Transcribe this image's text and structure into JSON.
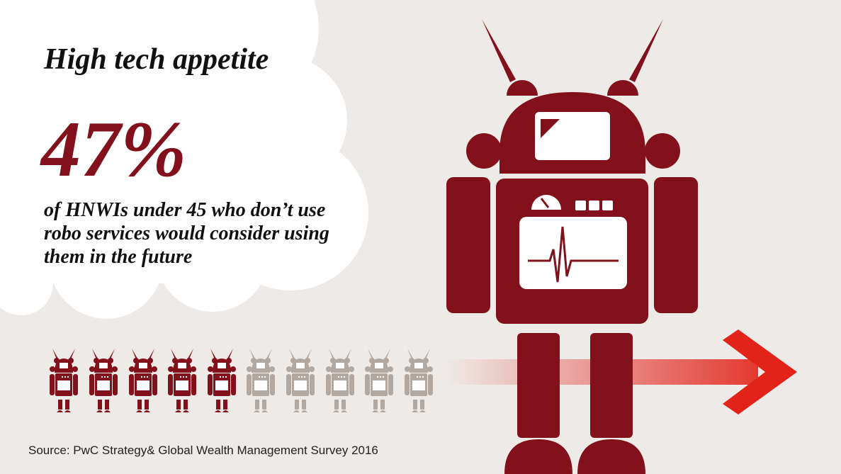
{
  "header": {
    "title": "High tech appetite"
  },
  "stat": {
    "value": "47%",
    "description": [
      "of HNWIs under 45 who don’t use",
      "robo services would consider using",
      "them in the future"
    ]
  },
  "footer": {
    "source": "Source: PwC Strategy& Global Wealth Management Survey 2016"
  }
}
